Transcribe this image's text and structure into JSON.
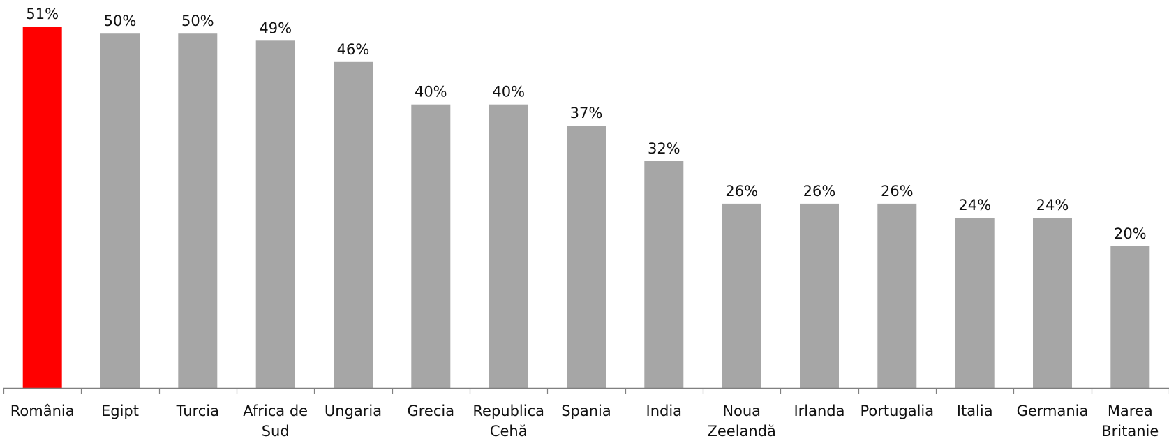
{
  "chart_data": {
    "type": "bar",
    "title": "",
    "xlabel": "",
    "ylabel": "",
    "ylim": [
      0,
      51
    ],
    "grid": false,
    "legend": "none",
    "value_format": "percent",
    "categories": [
      [
        "România"
      ],
      [
        "Egipt"
      ],
      [
        "Turcia"
      ],
      [
        "Africa de",
        "Sud"
      ],
      [
        "Ungaria"
      ],
      [
        "Grecia"
      ],
      [
        "Republica",
        "Cehă"
      ],
      [
        "Spania"
      ],
      [
        "India"
      ],
      [
        "Noua",
        "Zeelandă"
      ],
      [
        "Irlanda"
      ],
      [
        "Portugalia"
      ],
      [
        "Italia"
      ],
      [
        "Germania"
      ],
      [
        "Marea",
        "Britanie"
      ]
    ],
    "values": [
      51,
      50,
      50,
      49,
      46,
      40,
      40,
      37,
      32,
      26,
      26,
      26,
      24,
      24,
      20
    ],
    "data_labels": [
      "51%",
      "50%",
      "50%",
      "49%",
      "46%",
      "40%",
      "40%",
      "37%",
      "32%",
      "26%",
      "26%",
      "26%",
      "24%",
      "24%",
      "20%"
    ],
    "colors": {
      "highlight": "#ff0000",
      "default": "#a6a6a6",
      "axis": "#808080"
    },
    "highlight_index": 0
  }
}
